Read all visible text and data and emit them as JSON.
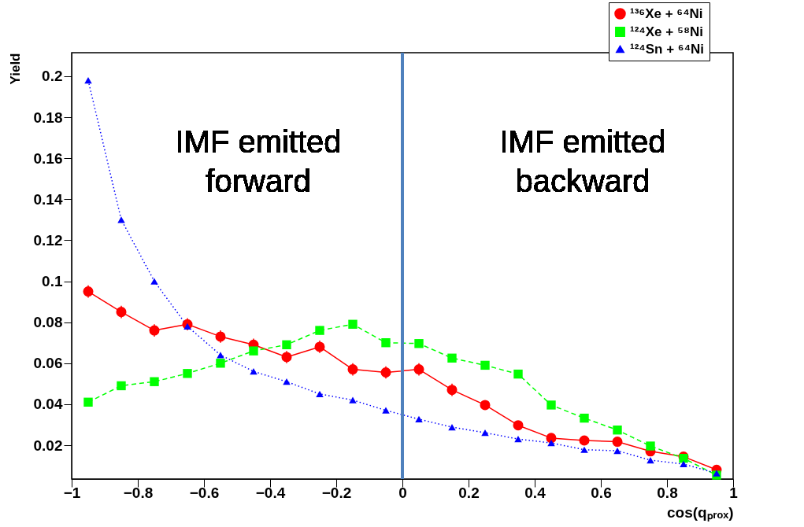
{
  "chart_data": {
    "type": "line",
    "xlabel": "cos(qₚᵣₒₓ)",
    "ylabel": "Yield",
    "x": [
      -0.95,
      -0.85,
      -0.75,
      -0.65,
      -0.55,
      -0.45,
      -0.35,
      -0.25,
      -0.15,
      -0.05,
      0.05,
      0.15,
      0.25,
      0.35,
      0.45,
      0.55,
      0.65,
      0.75,
      0.85,
      0.95
    ],
    "series": [
      {
        "name": "¹³⁶Xe + ⁶⁴Ni",
        "color": "#ff0000",
        "marker": "circle",
        "line_style": "solid",
        "values": [
          0.095,
          0.085,
          0.076,
          0.079,
          0.073,
          0.069,
          0.063,
          0.068,
          0.057,
          0.0555,
          0.057,
          0.047,
          0.0396,
          0.0297,
          0.0235,
          0.0223,
          0.0217,
          0.017,
          0.0144,
          0.008
        ],
        "errors": [
          0.003,
          0.003,
          0.003,
          0.003,
          0.003,
          0.003,
          0.003,
          0.003,
          0.003,
          0.003,
          0.003,
          0.003,
          0.002,
          0.001,
          0.001,
          0.001,
          0.001,
          0.001,
          0.001,
          0.001
        ]
      },
      {
        "name": "¹²⁴Xe + ⁵⁸Ni",
        "color": "#00ff00",
        "marker": "square",
        "line_style": "dashed",
        "values": [
          0.041,
          0.049,
          0.051,
          0.055,
          0.06,
          0.066,
          0.069,
          0.076,
          0.079,
          0.07,
          0.0696,
          0.0625,
          0.059,
          0.0547,
          0.0396,
          0.0332,
          0.0274,
          0.0196,
          0.0136,
          0.0054
        ],
        "errors": [
          0.002,
          0.002,
          0.002,
          0.002,
          0.002,
          0.002,
          0.002,
          0.002,
          0.002,
          0.002,
          0.002,
          0.002,
          0.001,
          0.001,
          0.001,
          0.001,
          0.001,
          0.001,
          0.001,
          0.001
        ]
      },
      {
        "name": "¹²⁴Sn + ⁶⁴Ni",
        "color": "#0000ff",
        "marker": "triangle",
        "line_style": "dotted",
        "values": [
          0.198,
          0.13,
          0.1,
          0.078,
          0.064,
          0.056,
          0.051,
          0.045,
          0.042,
          0.037,
          0.0327,
          0.0288,
          0.0261,
          0.023,
          0.0211,
          0.0178,
          0.0173,
          0.0127,
          0.0108,
          0.0063
        ]
      }
    ],
    "xlim": [
      -1,
      1
    ],
    "xticks": [
      -1,
      -0.8,
      -0.6,
      -0.4,
      -0.2,
      0,
      0.2,
      0.4,
      0.6,
      0.8,
      1
    ],
    "ylim": [
      0.0035,
      0.2115
    ],
    "yticks": [
      0.02,
      0.04,
      0.06,
      0.08,
      0.1,
      0.12,
      0.14,
      0.16,
      0.18,
      0.2
    ],
    "ref_lines": [
      {
        "axis": "x",
        "value": 0,
        "color": "#4f81bd"
      }
    ],
    "annotations": [
      "IMF emitted\nforward",
      "IMF emitted\nbackward"
    ],
    "legend": "top right",
    "grid": false
  }
}
